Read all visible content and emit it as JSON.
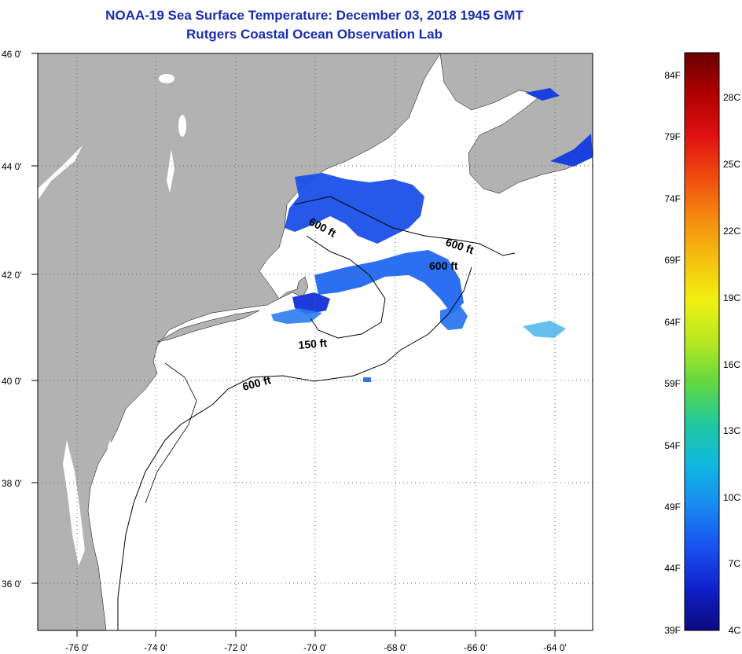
{
  "title": {
    "line1": "NOAA-19 Sea Surface Temperature:  December 03, 2018 1945 GMT",
    "line2": "Rutgers Coastal Ocean Observation Lab"
  },
  "axes": {
    "lon_labels": [
      "-76 0'",
      "-74 0'",
      "-72 0'",
      "-70 0'",
      "-68 0'",
      "-66 0'",
      "-64 0'"
    ],
    "lat_labels": [
      "46 0'",
      "44 0'",
      "42 0'",
      "40 0'",
      "38 0'",
      "36 0'"
    ]
  },
  "contours": {
    "labels": [
      "600 ft",
      "600 ft",
      "600 ft",
      "150 ft",
      "600 ft"
    ]
  },
  "colorbar": {
    "f_labels": [
      "84F",
      "79F",
      "74F",
      "69F",
      "64F",
      "59F",
      "54F",
      "49F",
      "44F",
      "39F"
    ],
    "c_labels": [
      "28C",
      "25C",
      "22C",
      "19C",
      "16C",
      "13C",
      "10C",
      "7C",
      "4C"
    ],
    "colors": [
      "#6a0000",
      "#b00000",
      "#e01010",
      "#f04a10",
      "#f58a10",
      "#f5c010",
      "#f0f010",
      "#b8e820",
      "#60d840",
      "#20c8a0",
      "#10b8e0",
      "#1888f0",
      "#1850f0",
      "#1020c8",
      "#0a0a80"
    ]
  },
  "colors": {
    "land": "#b2b2b2",
    "sst_cold": "#1a40e0",
    "sst_mid": "#2a78f0",
    "title": "#1a2fb0"
  }
}
